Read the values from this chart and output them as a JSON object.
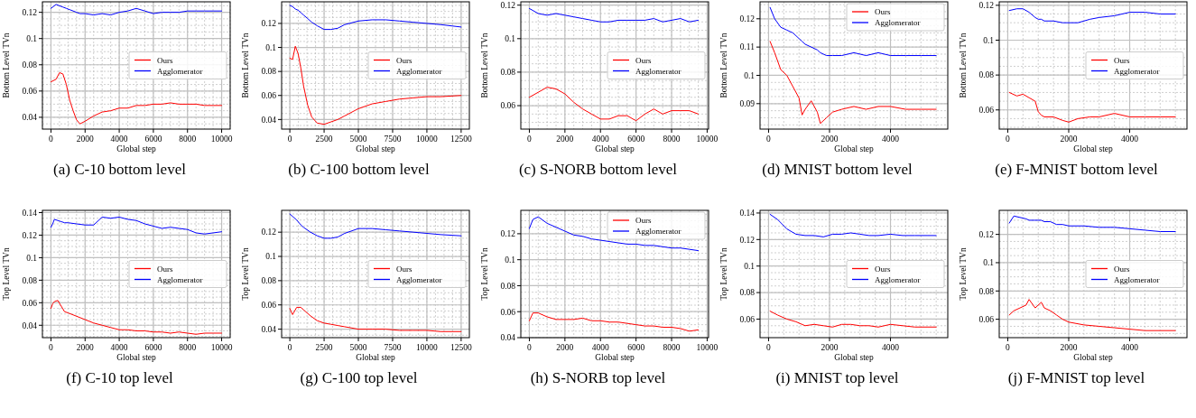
{
  "chart_data": [
    {
      "type": "line",
      "title": "(a) C-10 bottom level",
      "xlabel": "Global step",
      "ylabel": "Bottom Level TVn",
      "xlim": [
        -500,
        10500
      ],
      "xticks": [
        0,
        2000,
        4000,
        6000,
        8000,
        10000
      ],
      "ylim": [
        0.031,
        0.128
      ],
      "yticks": [
        0.04,
        0.06,
        0.08,
        0.1,
        0.12
      ],
      "grid": true,
      "legend": "right",
      "x": [
        0,
        300,
        500,
        700,
        900,
        1100,
        1300,
        1500,
        1700,
        2000,
        2500,
        3000,
        3500,
        4000,
        4500,
        5000,
        5500,
        6000,
        6500,
        7000,
        7500,
        8000,
        8500,
        9000,
        9500,
        10000
      ],
      "series": [
        {
          "name": "Ours",
          "color": "#ff0000",
          "values": [
            0.067,
            0.069,
            0.074,
            0.073,
            0.065,
            0.053,
            0.045,
            0.038,
            0.035,
            0.037,
            0.041,
            0.044,
            0.045,
            0.047,
            0.047,
            0.049,
            0.049,
            0.05,
            0.05,
            0.051,
            0.05,
            0.05,
            0.05,
            0.049,
            0.049,
            0.049
          ]
        },
        {
          "name": "Agglomerator",
          "color": "#0000ff",
          "values": [
            0.123,
            0.126,
            0.125,
            0.124,
            0.123,
            0.122,
            0.121,
            0.12,
            0.119,
            0.119,
            0.118,
            0.119,
            0.118,
            0.12,
            0.121,
            0.123,
            0.121,
            0.119,
            0.12,
            0.12,
            0.12,
            0.121,
            0.121,
            0.121,
            0.121,
            0.121
          ]
        }
      ]
    },
    {
      "type": "line",
      "title": "(b) C-100 bottom level",
      "xlabel": "Global step",
      "ylabel": "Bottom Level TVn",
      "xlim": [
        -600,
        13100
      ],
      "xticks": [
        0,
        2500,
        5000,
        7500,
        10000,
        12500
      ],
      "ylim": [
        0.032,
        0.138
      ],
      "yticks": [
        0.04,
        0.06,
        0.08,
        0.1,
        0.12
      ],
      "grid": true,
      "legend": "right",
      "x": [
        0,
        200,
        400,
        600,
        800,
        1000,
        1300,
        1600,
        2000,
        2500,
        3000,
        3500,
        4000,
        5000,
        6000,
        7000,
        8000,
        9000,
        10000,
        11000,
        12500
      ],
      "series": [
        {
          "name": "Ours",
          "color": "#ff0000",
          "values": [
            0.091,
            0.09,
            0.101,
            0.095,
            0.083,
            0.068,
            0.052,
            0.042,
            0.037,
            0.036,
            0.038,
            0.04,
            0.043,
            0.049,
            0.053,
            0.055,
            0.057,
            0.058,
            0.059,
            0.059,
            0.06
          ]
        },
        {
          "name": "Agglomerator",
          "color": "#0000ff",
          "values": [
            0.135,
            0.134,
            0.132,
            0.131,
            0.129,
            0.127,
            0.124,
            0.121,
            0.118,
            0.115,
            0.115,
            0.116,
            0.119,
            0.122,
            0.123,
            0.123,
            0.122,
            0.121,
            0.12,
            0.119,
            0.117
          ]
        }
      ]
    },
    {
      "type": "line",
      "title": "(c) S-NORB bottom level",
      "xlabel": "Global step",
      "ylabel": "Bottom Level TVn",
      "xlim": [
        -480,
        10080
      ],
      "xticks": [
        0,
        2000,
        4000,
        6000,
        8000,
        10000
      ],
      "ylim": [
        0.046,
        0.122
      ],
      "yticks": [
        0.06,
        0.08,
        0.1,
        0.12
      ],
      "grid": true,
      "legend": "right",
      "x": [
        0,
        500,
        1000,
        1500,
        2000,
        2500,
        3000,
        3500,
        4000,
        4500,
        5000,
        5500,
        6000,
        6500,
        7000,
        7500,
        8000,
        8500,
        9000,
        9500
      ],
      "series": [
        {
          "name": "Ours",
          "color": "#ff0000",
          "values": [
            0.065,
            0.068,
            0.071,
            0.07,
            0.067,
            0.062,
            0.058,
            0.055,
            0.052,
            0.052,
            0.054,
            0.054,
            0.051,
            0.055,
            0.058,
            0.055,
            0.057,
            0.057,
            0.057,
            0.055
          ]
        },
        {
          "name": "Agglomerator",
          "color": "#0000ff",
          "values": [
            0.118,
            0.115,
            0.114,
            0.115,
            0.114,
            0.113,
            0.112,
            0.111,
            0.11,
            0.11,
            0.111,
            0.111,
            0.111,
            0.111,
            0.112,
            0.11,
            0.111,
            0.112,
            0.11,
            0.111
          ]
        }
      ]
    },
    {
      "type": "line",
      "title": "(d) MNIST bottom level",
      "xlabel": "Global step",
      "ylabel": "Bottom Level TVn",
      "xlim": [
        -280,
        5880
      ],
      "xticks": [
        0,
        2000,
        4000
      ],
      "ylim": [
        0.081,
        0.126
      ],
      "yticks": [
        0.09,
        0.1,
        0.11,
        0.12
      ],
      "grid": true,
      "legend": "top right",
      "x": [
        50,
        200,
        400,
        600,
        800,
        1000,
        1100,
        1200,
        1400,
        1600,
        1700,
        1900,
        2100,
        2400,
        2800,
        3200,
        3600,
        4000,
        4500,
        5000,
        5500
      ],
      "series": [
        {
          "name": "Ours",
          "color": "#ff0000",
          "values": [
            0.112,
            0.108,
            0.102,
            0.1,
            0.096,
            0.092,
            0.086,
            0.088,
            0.091,
            0.087,
            0.083,
            0.085,
            0.087,
            0.088,
            0.089,
            0.088,
            0.089,
            0.089,
            0.088,
            0.088,
            0.088
          ]
        },
        {
          "name": "Agglomerator",
          "color": "#0000ff",
          "values": [
            0.124,
            0.12,
            0.117,
            0.116,
            0.115,
            0.113,
            0.112,
            0.111,
            0.11,
            0.109,
            0.108,
            0.107,
            0.107,
            0.107,
            0.108,
            0.107,
            0.108,
            0.107,
            0.107,
            0.107,
            0.107
          ]
        }
      ]
    },
    {
      "type": "line",
      "title": "(e) F-MNIST bottom level",
      "xlabel": "Global step",
      "ylabel": "Bottom Level TVn",
      "xlim": [
        -280,
        5880
      ],
      "xticks": [
        0,
        2000,
        4000
      ],
      "ylim": [
        0.049,
        0.122
      ],
      "yticks": [
        0.06,
        0.08,
        0.1,
        0.12
      ],
      "grid": true,
      "legend": "right",
      "x": [
        50,
        300,
        500,
        700,
        900,
        1000,
        1100,
        1200,
        1500,
        1800,
        2000,
        2300,
        2700,
        3000,
        3500,
        4000,
        4500,
        5000,
        5500
      ],
      "series": [
        {
          "name": "Ours",
          "color": "#ff0000",
          "values": [
            0.07,
            0.068,
            0.069,
            0.067,
            0.065,
            0.059,
            0.057,
            0.056,
            0.056,
            0.054,
            0.053,
            0.055,
            0.056,
            0.056,
            0.058,
            0.056,
            0.056,
            0.056,
            0.056
          ]
        },
        {
          "name": "Agglomerator",
          "color": "#0000ff",
          "values": [
            0.117,
            0.118,
            0.118,
            0.116,
            0.113,
            0.112,
            0.112,
            0.111,
            0.111,
            0.11,
            0.11,
            0.11,
            0.112,
            0.113,
            0.114,
            0.116,
            0.116,
            0.115,
            0.115
          ]
        }
      ]
    },
    {
      "type": "line",
      "title": "(f) C-10 top level",
      "xlabel": "Global step",
      "ylabel": "Top Level TVn",
      "xlim": [
        -500,
        10500
      ],
      "xticks": [
        0,
        2000,
        4000,
        6000,
        8000,
        10000
      ],
      "ylim": [
        0.029,
        0.142
      ],
      "yticks": [
        0.04,
        0.06,
        0.08,
        0.1,
        0.12,
        0.14
      ],
      "grid": true,
      "legend": "right",
      "x": [
        0,
        100,
        200,
        400,
        600,
        800,
        1000,
        1500,
        2000,
        2500,
        3000,
        3500,
        4000,
        4500,
        5000,
        5500,
        6000,
        6500,
        7000,
        7500,
        8000,
        8500,
        9000,
        9500,
        10000
      ],
      "series": [
        {
          "name": "Ours",
          "color": "#ff0000",
          "values": [
            0.055,
            0.059,
            0.061,
            0.062,
            0.057,
            0.052,
            0.051,
            0.048,
            0.045,
            0.042,
            0.04,
            0.038,
            0.036,
            0.036,
            0.035,
            0.035,
            0.034,
            0.034,
            0.033,
            0.034,
            0.033,
            0.032,
            0.033,
            0.033,
            0.033
          ]
        },
        {
          "name": "Agglomerator",
          "color": "#0000ff",
          "values": [
            0.127,
            0.13,
            0.134,
            0.133,
            0.132,
            0.131,
            0.131,
            0.13,
            0.129,
            0.129,
            0.136,
            0.135,
            0.136,
            0.134,
            0.133,
            0.13,
            0.128,
            0.126,
            0.127,
            0.126,
            0.125,
            0.122,
            0.121,
            0.122,
            0.123
          ]
        }
      ]
    },
    {
      "type": "line",
      "title": "(g) C-100 top level",
      "xlabel": "Global step",
      "ylabel": "Top Level TVn",
      "xlim": [
        -600,
        13100
      ],
      "xticks": [
        0,
        2500,
        5000,
        7500,
        10000,
        12500
      ],
      "ylim": [
        0.033,
        0.138
      ],
      "yticks": [
        0.04,
        0.06,
        0.08,
        0.1,
        0.12
      ],
      "grid": true,
      "legend": "right",
      "x": [
        0,
        200,
        500,
        800,
        1000,
        1500,
        2000,
        2500,
        3000,
        3500,
        4000,
        5000,
        6000,
        7000,
        8000,
        9000,
        10000,
        11000,
        12500
      ],
      "series": [
        {
          "name": "Ours",
          "color": "#ff0000",
          "values": [
            0.057,
            0.052,
            0.058,
            0.058,
            0.056,
            0.051,
            0.047,
            0.045,
            0.044,
            0.043,
            0.042,
            0.04,
            0.04,
            0.04,
            0.039,
            0.039,
            0.039,
            0.038,
            0.038
          ]
        },
        {
          "name": "Agglomerator",
          "color": "#0000ff",
          "values": [
            0.135,
            0.133,
            0.13,
            0.126,
            0.124,
            0.12,
            0.117,
            0.115,
            0.115,
            0.116,
            0.119,
            0.123,
            0.123,
            0.122,
            0.121,
            0.12,
            0.119,
            0.118,
            0.117
          ]
        }
      ]
    },
    {
      "type": "line",
      "title": "(h) S-NORB top level",
      "xlabel": "Global step",
      "ylabel": "Top Level TVn",
      "xlim": [
        -480,
        10080
      ],
      "xticks": [
        0,
        2000,
        4000,
        6000,
        8000,
        10000
      ],
      "ylim": [
        0.04,
        0.138
      ],
      "yticks": [
        0.04,
        0.06,
        0.08,
        0.1,
        0.12
      ],
      "grid": true,
      "legend": "top right",
      "x": [
        0,
        200,
        500,
        1000,
        1500,
        2000,
        2500,
        3000,
        3500,
        4000,
        4500,
        5000,
        5500,
        6000,
        6500,
        7000,
        7500,
        8000,
        8500,
        9000,
        9500
      ],
      "series": [
        {
          "name": "Ours",
          "color": "#ff0000",
          "values": [
            0.053,
            0.059,
            0.059,
            0.056,
            0.054,
            0.054,
            0.054,
            0.055,
            0.053,
            0.053,
            0.052,
            0.052,
            0.051,
            0.05,
            0.049,
            0.049,
            0.048,
            0.048,
            0.047,
            0.045,
            0.046
          ]
        },
        {
          "name": "Agglomerator",
          "color": "#0000ff",
          "values": [
            0.124,
            0.131,
            0.133,
            0.128,
            0.125,
            0.122,
            0.119,
            0.118,
            0.116,
            0.115,
            0.114,
            0.113,
            0.112,
            0.112,
            0.111,
            0.111,
            0.11,
            0.109,
            0.109,
            0.108,
            0.107
          ]
        }
      ]
    },
    {
      "type": "line",
      "title": "(i) MNIST top level",
      "xlabel": "Global step",
      "ylabel": "Top Level TVn",
      "xlim": [
        -280,
        5880
      ],
      "xticks": [
        0,
        2000,
        4000
      ],
      "ylim": [
        0.046,
        0.142
      ],
      "yticks": [
        0.06,
        0.08,
        0.1,
        0.12,
        0.14
      ],
      "grid": true,
      "legend": "right",
      "x": [
        50,
        300,
        600,
        900,
        1200,
        1500,
        1800,
        2100,
        2400,
        2700,
        3000,
        3300,
        3600,
        4000,
        4400,
        4800,
        5200,
        5500
      ],
      "series": [
        {
          "name": "Ours",
          "color": "#ff0000",
          "values": [
            0.066,
            0.063,
            0.06,
            0.058,
            0.055,
            0.056,
            0.055,
            0.054,
            0.056,
            0.056,
            0.055,
            0.055,
            0.054,
            0.056,
            0.055,
            0.054,
            0.054,
            0.054
          ]
        },
        {
          "name": "Agglomerator",
          "color": "#0000ff",
          "values": [
            0.139,
            0.135,
            0.128,
            0.124,
            0.123,
            0.123,
            0.122,
            0.124,
            0.124,
            0.125,
            0.124,
            0.123,
            0.123,
            0.124,
            0.123,
            0.123,
            0.123,
            0.123
          ]
        }
      ]
    },
    {
      "type": "line",
      "title": "(j) F-MNIST top level",
      "xlabel": "Global step",
      "ylabel": "Top Level TVn",
      "xlim": [
        -280,
        5880
      ],
      "xticks": [
        0,
        2000,
        4000
      ],
      "ylim": [
        0.047,
        0.137
      ],
      "yticks": [
        0.06,
        0.08,
        0.1,
        0.12
      ],
      "grid": true,
      "legend": "right",
      "x": [
        50,
        200,
        400,
        600,
        700,
        900,
        1100,
        1200,
        1400,
        1600,
        1800,
        2000,
        2500,
        3000,
        3500,
        4000,
        4500,
        5000,
        5500
      ],
      "series": [
        {
          "name": "Ours",
          "color": "#ff0000",
          "values": [
            0.063,
            0.066,
            0.068,
            0.07,
            0.074,
            0.068,
            0.072,
            0.068,
            0.066,
            0.063,
            0.06,
            0.058,
            0.056,
            0.055,
            0.054,
            0.053,
            0.052,
            0.052,
            0.052
          ]
        },
        {
          "name": "Agglomerator",
          "color": "#0000ff",
          "values": [
            0.128,
            0.133,
            0.132,
            0.131,
            0.13,
            0.13,
            0.13,
            0.129,
            0.129,
            0.127,
            0.127,
            0.126,
            0.126,
            0.125,
            0.125,
            0.124,
            0.123,
            0.122,
            0.122
          ]
        }
      ]
    }
  ]
}
